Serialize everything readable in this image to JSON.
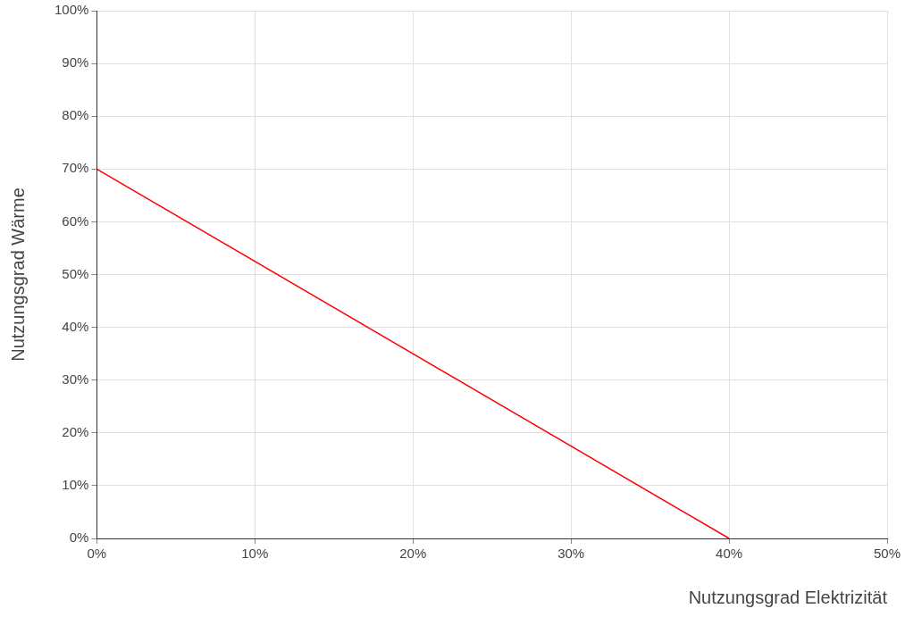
{
  "chart_data": {
    "type": "line",
    "xlabel": "Nutzungsgrad Elektrizität",
    "ylabel": "Nutzungsgrad Wärme",
    "x": [
      0,
      40
    ],
    "series": [
      {
        "color": "#ff0000",
        "values": [
          70,
          0
        ]
      }
    ],
    "xlim": [
      0,
      50
    ],
    "xticks": [
      {
        "value": 0,
        "label": "0%"
      },
      {
        "value": 10,
        "label": "10%"
      },
      {
        "value": 20,
        "label": "20%"
      },
      {
        "value": 30,
        "label": "30%"
      },
      {
        "value": 40,
        "label": "40%"
      },
      {
        "value": 50,
        "label": "50%"
      }
    ],
    "ylim": [
      0,
      100
    ],
    "yticks": [
      {
        "value": 0,
        "label": "0%"
      },
      {
        "value": 10,
        "label": "10%"
      },
      {
        "value": 20,
        "label": "20%"
      },
      {
        "value": 30,
        "label": "30%"
      },
      {
        "value": 40,
        "label": "40%"
      },
      {
        "value": 50,
        "label": "50%"
      },
      {
        "value": 60,
        "label": "60%"
      },
      {
        "value": 70,
        "label": "70%"
      },
      {
        "value": 80,
        "label": "80%"
      },
      {
        "value": 90,
        "label": "90%"
      },
      {
        "value": 100,
        "label": "100%"
      }
    ],
    "grid": true,
    "legend": false,
    "marker": "none",
    "line_style": "solid"
  }
}
